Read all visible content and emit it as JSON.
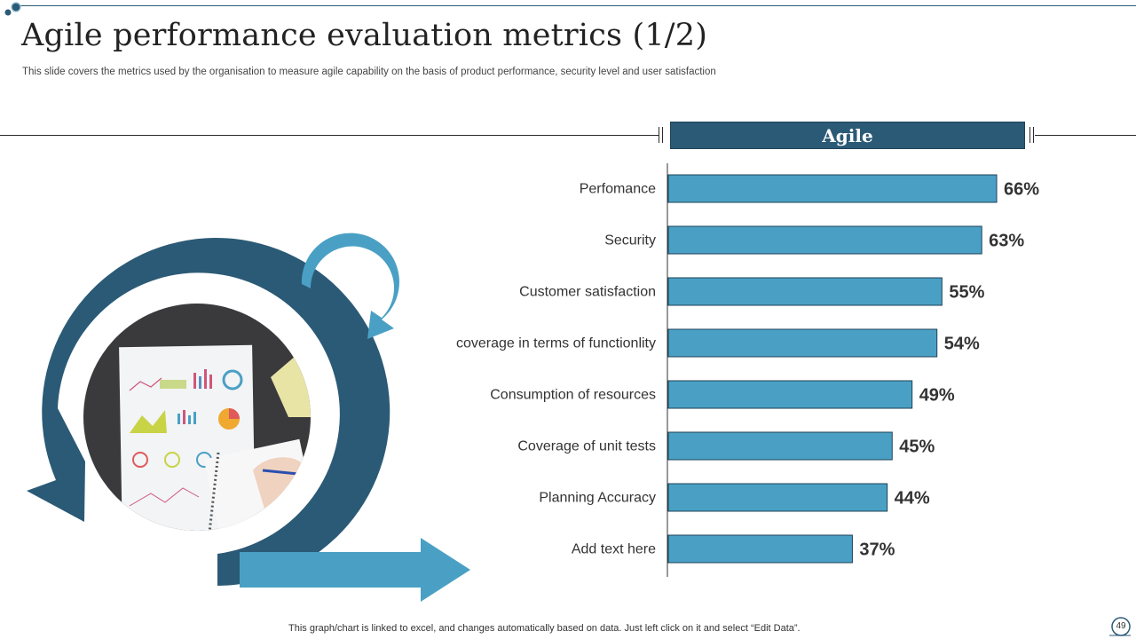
{
  "slide": {
    "title": "Agile performance evaluation metrics (1/2)",
    "subtitle": "This slide covers the metrics used by the organisation to measure agile capability on the basis of product performance, security level and user satisfaction",
    "footer_note": "This graph/chart is linked to excel,  and changes automatically based on data. Just left click on it and select “Edit Data”.",
    "page_number": "49"
  },
  "colors": {
    "header_fill": "#2b5a76",
    "bar_fill": "#4aa0c4",
    "dark_arrow": "#2b5a76",
    "light_arrow": "#4aa0c4"
  },
  "chart_data": {
    "type": "bar",
    "orientation": "horizontal",
    "series_name": "Agile",
    "categories": [
      "Perfomance",
      "Security",
      "Customer satisfaction",
      "coverage in terms of functionlity",
      "Consumption of resources",
      "Coverage of unit tests",
      "Planning Accuracy",
      "Add text here"
    ],
    "values": [
      66,
      63,
      55,
      54,
      49,
      45,
      44,
      37
    ],
    "data_labels": [
      "66%",
      "63%",
      "55%",
      "54%",
      "49%",
      "45%",
      "44%",
      "37%"
    ],
    "xlim": [
      0,
      100
    ],
    "grid": false,
    "legend": "none"
  }
}
